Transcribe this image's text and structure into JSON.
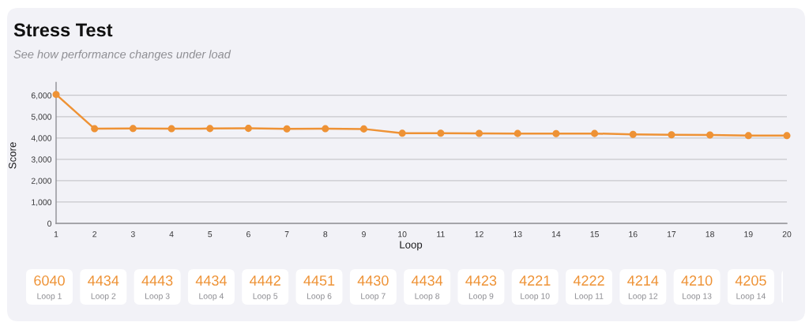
{
  "chart_data": [
    {
      "type": "line",
      "title": "Stress Test",
      "subtitle": "See how performance changes under load",
      "xlabel": "Loop",
      "ylabel": "Score",
      "x": [
        1,
        2,
        3,
        4,
        5,
        6,
        7,
        8,
        9,
        10,
        11,
        12,
        13,
        14,
        15,
        16,
        17,
        18,
        19,
        20
      ],
      "series": [
        {
          "color": "#ee9235",
          "values": [
            6040,
            4434,
            4443,
            4434,
            4442,
            4451,
            4430,
            4434,
            4423,
            4221,
            4222,
            4214,
            4210,
            4205,
            4210,
            4170,
            4150,
            4140,
            4110,
            4110
          ]
        }
      ],
      "xlim": [
        1,
        20
      ],
      "xticks": [
        1,
        2,
        3,
        4,
        5,
        6,
        7,
        8,
        9,
        10,
        11,
        12,
        13,
        14,
        15,
        16,
        17,
        18,
        19,
        20
      ],
      "ylim": [
        0,
        6600
      ],
      "yticks": [
        0,
        {
          "value": 1000,
          "label": "1,000"
        },
        {
          "value": 2000,
          "label": "2,000"
        },
        {
          "value": 3000,
          "label": "3,000"
        },
        {
          "value": 4000,
          "label": "4,000"
        },
        {
          "value": 5000,
          "label": "5,000"
        },
        {
          "value": 6000,
          "label": "6,000"
        }
      ],
      "grid": "y",
      "marker": "circle",
      "line_style": "solid"
    },
    {
      "type": "other",
      "categories": [
        "Loop 1",
        "Loop 2",
        "Loop 3",
        "Loop 4",
        "Loop 5",
        "Loop 6",
        "Loop 7",
        "Loop 8",
        "Loop 9",
        "Loop 10",
        "Loop 11",
        "Loop 12",
        "Loop 13",
        "Loop 14",
        null
      ],
      "values": [
        6040,
        4434,
        4443,
        4434,
        4442,
        4451,
        4430,
        4434,
        4423,
        4221,
        4222,
        4214,
        4210,
        4205,
        null
      ],
      "data_labels": true
    }
  ]
}
